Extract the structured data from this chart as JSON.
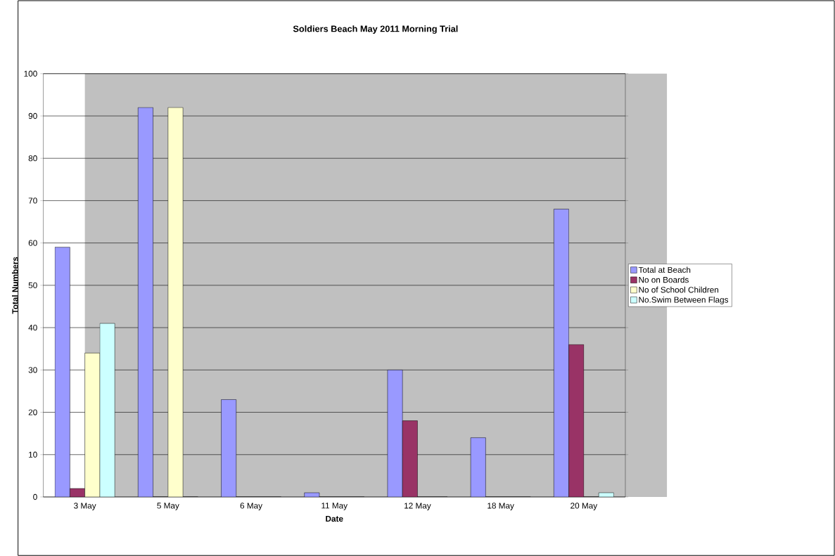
{
  "chart_data": {
    "type": "bar",
    "title": "Soldiers Beach May 2011 Morning Trial",
    "xlabel": "Date",
    "ylabel": "Total Numbers",
    "categories": [
      "3 May",
      "5 May",
      "6 May",
      "11 May",
      "12 May",
      "18 May",
      "20 May"
    ],
    "series": [
      {
        "name": "Total at Beach",
        "color": "#9999ff",
        "values": [
          59,
          92,
          23,
          1,
          30,
          14,
          68
        ]
      },
      {
        "name": "No on Boards",
        "color": "#993366",
        "values": [
          2,
          0,
          0,
          0,
          18,
          0,
          36
        ]
      },
      {
        "name": "No of School Children",
        "color": "#ffffcc",
        "values": [
          34,
          92,
          0,
          0,
          0,
          0,
          0
        ]
      },
      {
        "name": "No.Swim Between Flags",
        "color": "#ccffff",
        "values": [
          41,
          0,
          0,
          0,
          0,
          0,
          1
        ]
      }
    ],
    "ylim": [
      0,
      100
    ],
    "yticks": [
      0,
      10,
      20,
      30,
      40,
      50,
      60,
      70,
      80,
      90,
      100
    ],
    "grid": "y",
    "legend": "right"
  }
}
